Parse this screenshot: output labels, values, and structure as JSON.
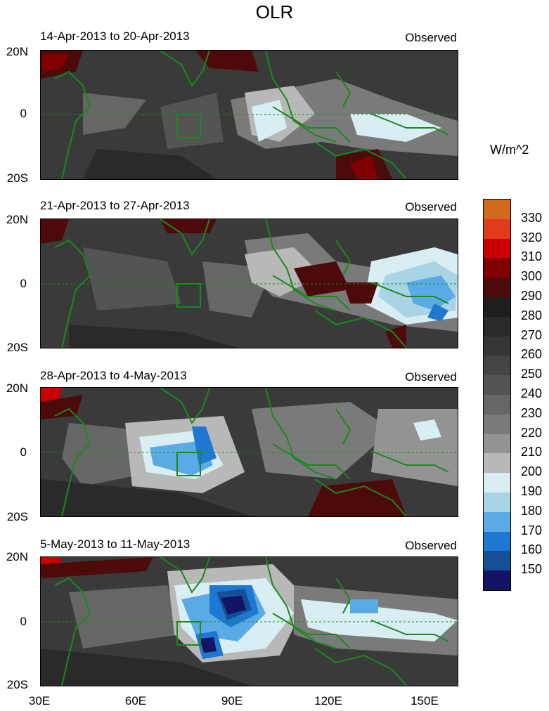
{
  "title": "OLR",
  "panels": [
    {
      "date_range": "14-Apr-2013 to 20-Apr-2013",
      "label": "Observed"
    },
    {
      "date_range": "21-Apr-2013 to 27-Apr-2013",
      "label": "Observed"
    },
    {
      "date_range": "28-Apr-2013 to 4-May-2013",
      "label": "Observed"
    },
    {
      "date_range": "5-May-2013 to 11-May-2013",
      "label": "Observed"
    }
  ],
  "lat_labels": [
    "20N",
    "0",
    "20S"
  ],
  "lon_labels": [
    "30E",
    "60E",
    "90E",
    "120E",
    "150E"
  ],
  "colorbar": {
    "unit": "W/m^2",
    "levels": [
      330,
      320,
      310,
      300,
      290,
      280,
      270,
      260,
      250,
      240,
      230,
      220,
      210,
      200,
      190,
      180,
      170,
      160,
      150
    ],
    "colors": [
      "#d2691e",
      "#e03c1c",
      "#cc0000",
      "#800000",
      "#4d0a0a",
      "#1e1e1e",
      "#2a2a2a",
      "#363636",
      "#444444",
      "#545454",
      "#666666",
      "#7a7a7a",
      "#939393",
      "#b8b8b8",
      "#d8eef3",
      "#a8d4e6",
      "#5aaae6",
      "#1e78d2",
      "#145096",
      "#141464"
    ]
  }
}
